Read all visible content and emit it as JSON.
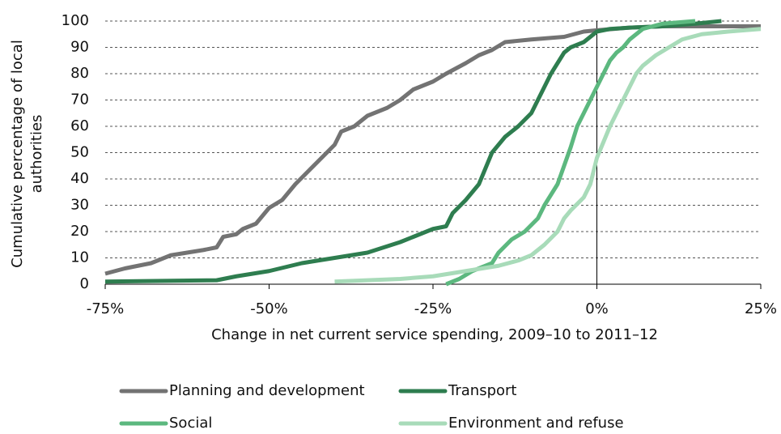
{
  "chart_data": {
    "type": "line",
    "x_label": "Change in net current service spending, 2009–10 to 2011–12",
    "y_label": [
      "Cumulative percentage of local",
      "authorities"
    ],
    "xlim": [
      -75,
      25
    ],
    "xticks": [
      {
        "value": -75,
        "label": "-75%"
      },
      {
        "value": -50,
        "label": "-50%"
      },
      {
        "value": -25,
        "label": "-25%"
      },
      {
        "value": 0,
        "label": "0%"
      },
      {
        "value": 25,
        "label": "25%"
      }
    ],
    "ylim": [
      0,
      100
    ],
    "yticks": [
      0,
      10,
      20,
      30,
      40,
      50,
      60,
      70,
      80,
      90,
      100
    ],
    "grid": true,
    "legend": "bottom",
    "series": [
      {
        "name": "Planning and development",
        "color": "#737373",
        "x": [
          -75,
          -72,
          -68,
          -65,
          -60,
          -58,
          -57,
          -55,
          -54,
          -52,
          -50,
          -48,
          -46,
          -44,
          -42,
          -40,
          -39,
          -37,
          -35,
          -32,
          -30,
          -28,
          -25,
          -23,
          -20,
          -18,
          -16,
          -14,
          -10,
          -5,
          -2,
          0,
          5,
          10,
          20,
          25
        ],
        "values": [
          4,
          6,
          8,
          11,
          13,
          14,
          18,
          19,
          21,
          23,
          29,
          32,
          38,
          43,
          48,
          53,
          58,
          60,
          64,
          67,
          70,
          74,
          77,
          80,
          84,
          87,
          89,
          92,
          93,
          94,
          96,
          96.5,
          97.5,
          98,
          98,
          98
        ]
      },
      {
        "name": "Transport",
        "color": "#2e7d4f",
        "x": [
          -75,
          -58,
          -55,
          -50,
          -45,
          -40,
          -35,
          -30,
          -28,
          -25,
          -23,
          -22,
          -20,
          -18,
          -17,
          -16,
          -14,
          -12,
          -10,
          -9,
          -8,
          -7,
          -6,
          -5,
          -4,
          -2,
          -1,
          0,
          2,
          5,
          10,
          15,
          19
        ],
        "values": [
          1,
          1.5,
          3,
          5,
          8,
          10,
          12,
          16,
          18,
          21,
          22,
          27,
          32,
          38,
          44,
          50,
          56,
          60,
          65,
          70,
          75,
          80,
          84,
          88,
          90,
          92,
          94,
          96,
          97,
          97.5,
          98,
          99,
          100
        ]
      },
      {
        "name": "Social",
        "color": "#5cb87f",
        "x": [
          -23,
          -21,
          -19,
          -16,
          -15,
          -13,
          -11,
          -9,
          -8,
          -6,
          -5,
          -4,
          -3,
          -2,
          -1,
          0,
          1,
          2,
          3,
          4,
          5,
          7,
          10,
          15
        ],
        "values": [
          0,
          2,
          5,
          8,
          12,
          17,
          20,
          25,
          30,
          38,
          45,
          52,
          60,
          65,
          70,
          75,
          80,
          85,
          88,
          90,
          93,
          97,
          99,
          100
        ]
      },
      {
        "name": "Environment and refuse",
        "color": "#a8dbb9",
        "x": [
          -40,
          -30,
          -25,
          -20,
          -15,
          -12,
          -10,
          -8,
          -6,
          -5,
          -4,
          -2,
          -1,
          0,
          1,
          2,
          3,
          4,
          5,
          6,
          7,
          9,
          11,
          13,
          16,
          20,
          25
        ],
        "values": [
          1,
          2,
          3,
          5,
          7,
          9,
          11,
          15,
          20,
          25,
          28,
          33,
          38,
          48,
          54,
          60,
          65,
          70,
          75,
          80,
          83,
          87,
          90,
          93,
          95,
          96,
          97
        ]
      }
    ]
  }
}
